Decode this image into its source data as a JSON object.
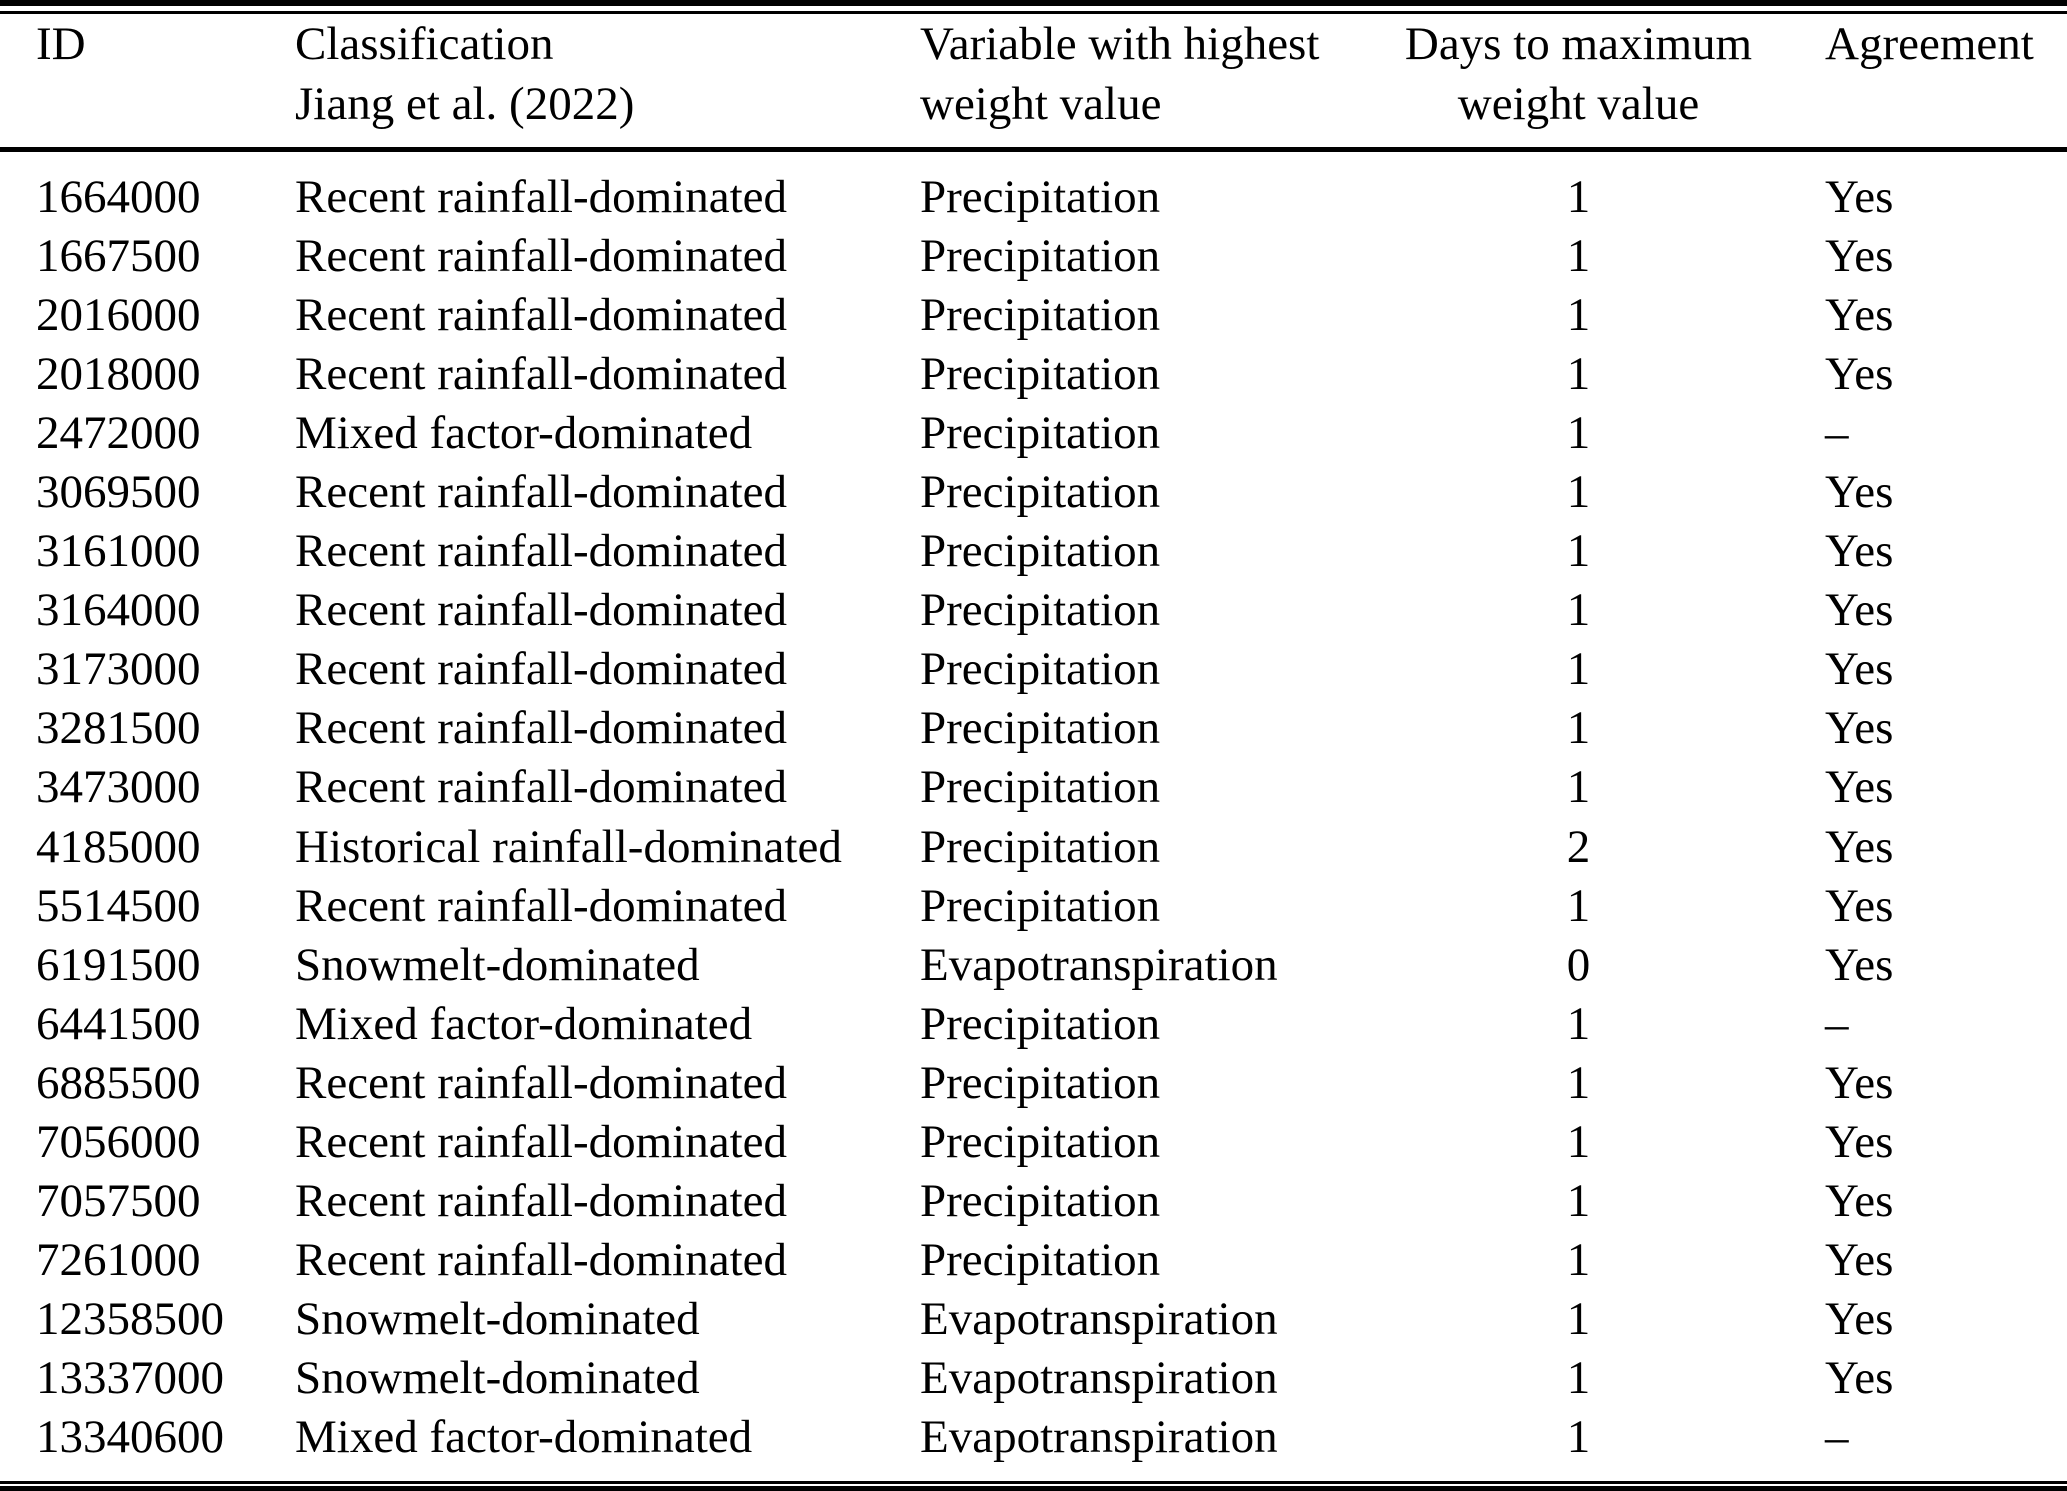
{
  "colors": {
    "text": "#000000",
    "background": "#ffffff",
    "rule": "#000000"
  },
  "table": {
    "columns": [
      {
        "id": "id",
        "label_line1": "ID",
        "label_line2": ""
      },
      {
        "id": "classification",
        "label_line1": "Classification",
        "label_line2": "Jiang et al. (2022)"
      },
      {
        "id": "variable",
        "label_line1": "Variable with highest",
        "label_line2": "weight value"
      },
      {
        "id": "days",
        "label_line1": "Days to maximum",
        "label_line2": "weight value"
      },
      {
        "id": "agreement",
        "label_line1": "Agreement",
        "label_line2": ""
      }
    ],
    "rows": [
      [
        "1664000",
        "Recent rainfall-dominated",
        "Precipitation",
        "1",
        "Yes"
      ],
      [
        "1667500",
        "Recent rainfall-dominated",
        "Precipitation",
        "1",
        "Yes"
      ],
      [
        "2016000",
        "Recent rainfall-dominated",
        "Precipitation",
        "1",
        "Yes"
      ],
      [
        "2018000",
        "Recent rainfall-dominated",
        "Precipitation",
        "1",
        "Yes"
      ],
      [
        "2472000",
        "Mixed factor-dominated",
        "Precipitation",
        "1",
        "–"
      ],
      [
        "3069500",
        "Recent rainfall-dominated",
        "Precipitation",
        "1",
        "Yes"
      ],
      [
        "3161000",
        "Recent rainfall-dominated",
        "Precipitation",
        "1",
        "Yes"
      ],
      [
        "3164000",
        "Recent rainfall-dominated",
        "Precipitation",
        "1",
        "Yes"
      ],
      [
        "3173000",
        "Recent rainfall-dominated",
        "Precipitation",
        "1",
        "Yes"
      ],
      [
        "3281500",
        "Recent rainfall-dominated",
        "Precipitation",
        "1",
        "Yes"
      ],
      [
        "3473000",
        "Recent rainfall-dominated",
        "Precipitation",
        "1",
        "Yes"
      ],
      [
        "4185000",
        "Historical rainfall-dominated",
        "Precipitation",
        "2",
        "Yes"
      ],
      [
        "5514500",
        "Recent rainfall-dominated",
        "Precipitation",
        "1",
        "Yes"
      ],
      [
        "6191500",
        "Snowmelt-dominated",
        "Evapotranspiration",
        "0",
        "Yes"
      ],
      [
        "6441500",
        "Mixed factor-dominated",
        "Precipitation",
        "1",
        "–"
      ],
      [
        "6885500",
        "Recent rainfall-dominated",
        "Precipitation",
        "1",
        "Yes"
      ],
      [
        "7056000",
        "Recent rainfall-dominated",
        "Precipitation",
        "1",
        "Yes"
      ],
      [
        "7057500",
        "Recent rainfall-dominated",
        "Precipitation",
        "1",
        "Yes"
      ],
      [
        "7261000",
        "Recent rainfall-dominated",
        "Precipitation",
        "1",
        "Yes"
      ],
      [
        "12358500",
        "Snowmelt-dominated",
        "Evapotranspiration",
        "1",
        "Yes"
      ],
      [
        "13337000",
        "Snowmelt-dominated",
        "Evapotranspiration",
        "1",
        "Yes"
      ],
      [
        "13340600",
        "Mixed factor-dominated",
        "Evapotranspiration",
        "1",
        "–"
      ]
    ]
  }
}
